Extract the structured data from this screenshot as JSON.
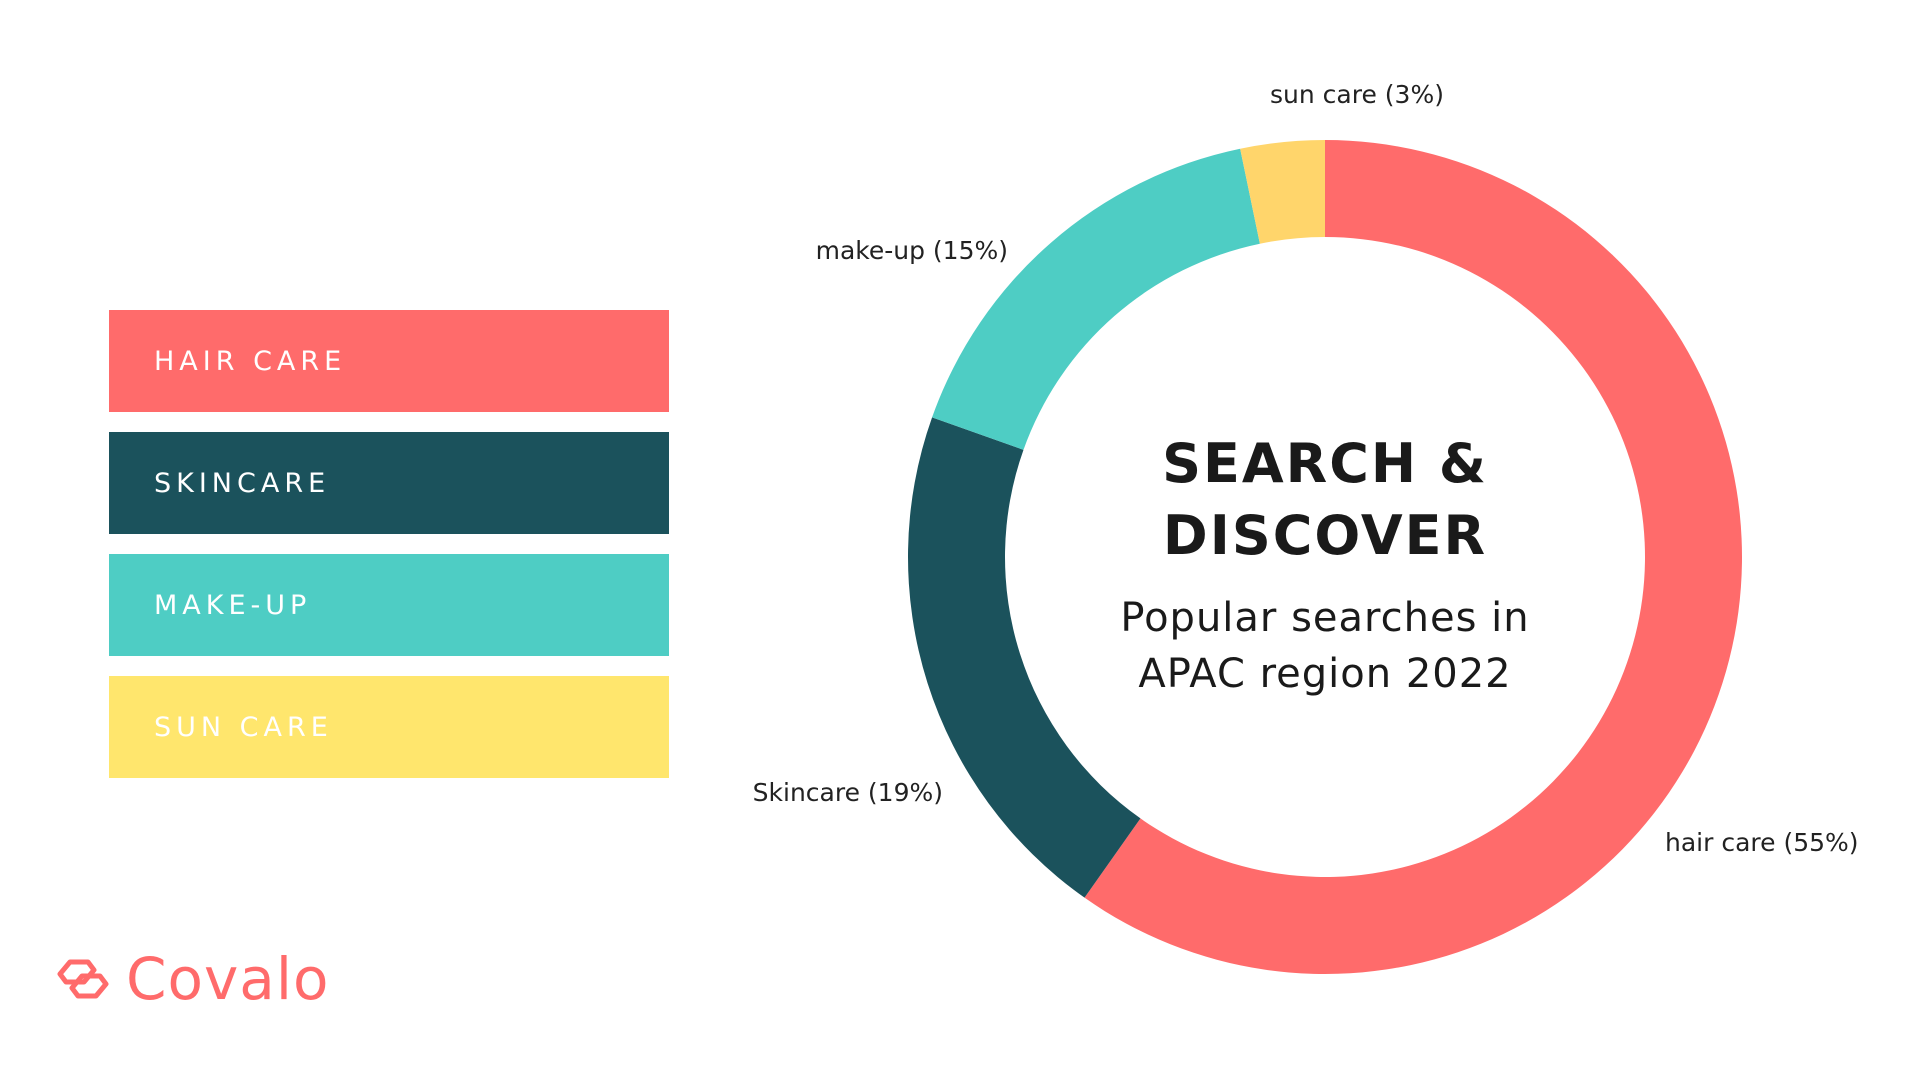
{
  "legend": {
    "items": [
      {
        "label": "HAIR CARE",
        "color": "#ff6b6b"
      },
      {
        "label": "SKINCARE",
        "color": "#1b525c"
      },
      {
        "label": "MAKE-UP",
        "color": "#4ecdc4"
      },
      {
        "label": "SUN CARE",
        "color": "#ffe66d"
      }
    ]
  },
  "center": {
    "title_line1": "SEARCH &",
    "title_line2": "DISCOVER",
    "subtitle_line1": "Popular searches in",
    "subtitle_line2": "APAC region 2022"
  },
  "logo": {
    "name": "Covalo",
    "icon": "linked-hexagons-icon",
    "color": "#ff6b6b"
  },
  "chart_data": {
    "type": "pie",
    "donut": true,
    "categories": [
      "hair care",
      "Skincare",
      "make-up",
      "sun care"
    ],
    "values": [
      55,
      19,
      15,
      3
    ],
    "unit": "%",
    "labels": [
      "hair care (55%)",
      "Skincare (19%)",
      "make-up (15%)",
      "sun care (3%)"
    ],
    "colors": [
      "#ff6b6b",
      "#1b525c",
      "#4ecdc4",
      "#ffd56b"
    ]
  }
}
